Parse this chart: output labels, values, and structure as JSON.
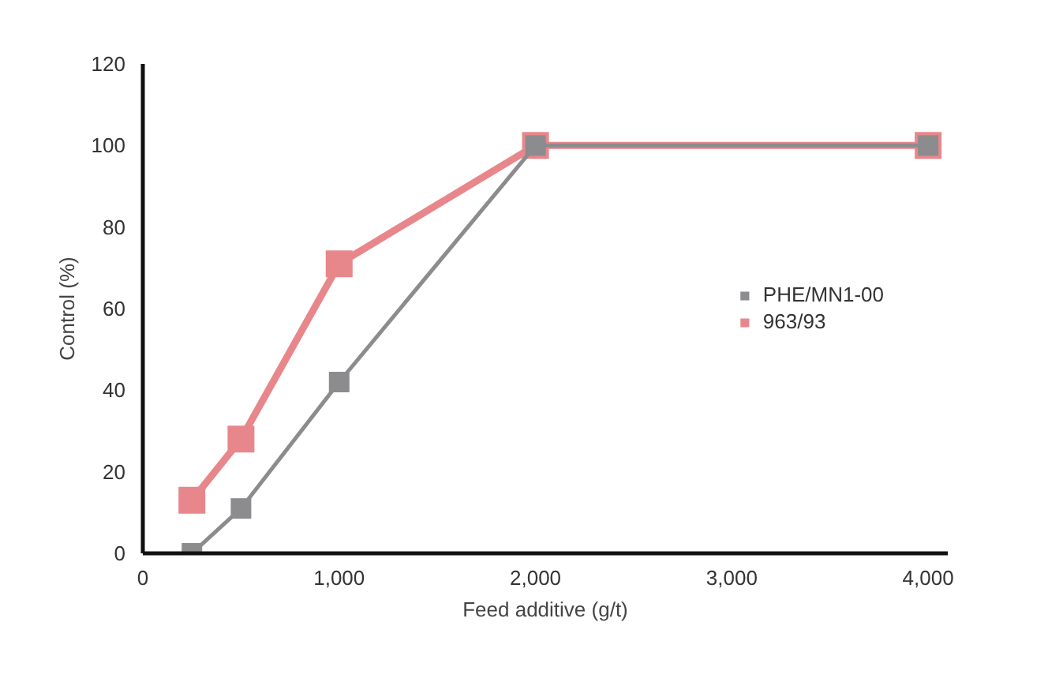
{
  "chart_data": {
    "type": "line",
    "xlabel": "Feed additive (g/t)",
    "ylabel": "Control (%)",
    "xlim": [
      0,
      4100
    ],
    "ylim": [
      0,
      120
    ],
    "xticks": [
      0,
      {
        "value": 1000,
        "label": "1,000"
      },
      {
        "value": 2000,
        "label": "2,000"
      },
      {
        "value": 3000,
        "label": "3,000"
      },
      {
        "value": 4000,
        "label": "4,000"
      }
    ],
    "yticks": [
      0,
      20,
      40,
      60,
      80,
      100,
      120
    ],
    "series": [
      {
        "name": "963/93",
        "color": "#e8878b",
        "x": [
          250,
          500,
          1000,
          2000,
          4000
        ],
        "values": [
          13,
          28,
          71,
          100,
          100
        ]
      },
      {
        "name": "PHE/MN1-00",
        "color": "#8c8c8f",
        "x": [
          250,
          500,
          1000,
          2000,
          4000
        ],
        "values": [
          0,
          11,
          42,
          100,
          100
        ]
      }
    ],
    "marker": "square",
    "line_style": "solid",
    "grid": false,
    "legend": "right"
  }
}
